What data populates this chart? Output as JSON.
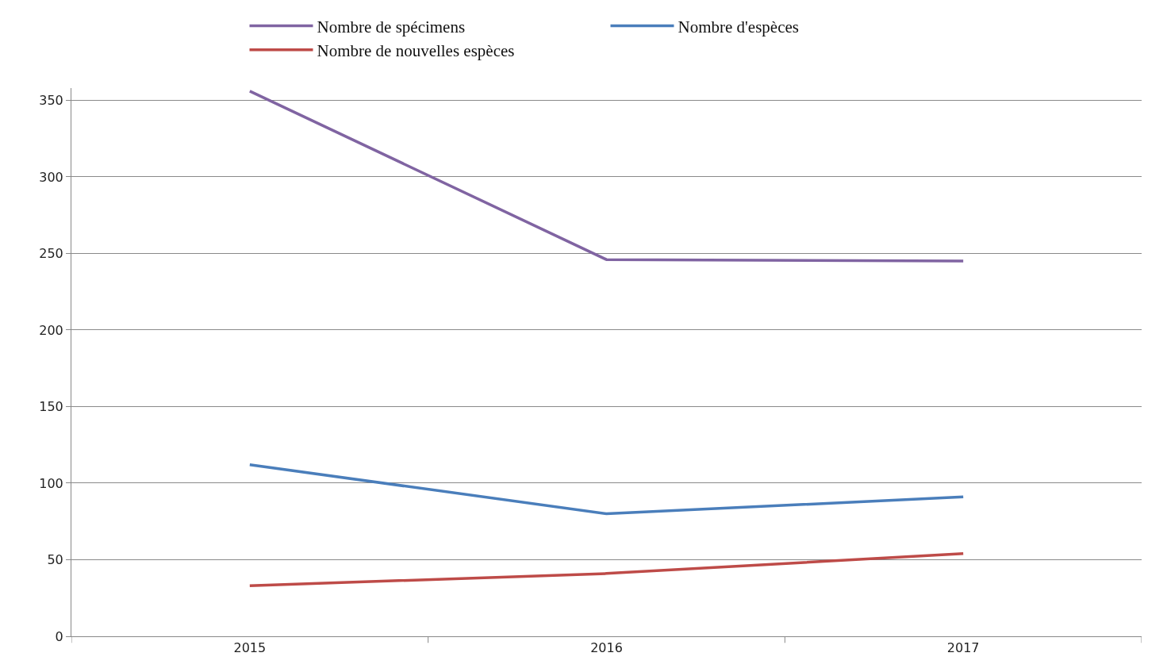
{
  "chart_data": {
    "type": "line",
    "categories": [
      "2015",
      "2016",
      "2017"
    ],
    "series": [
      {
        "name": "Nombre de spécimens",
        "color": "#8064a2",
        "values": [
          356,
          246,
          245
        ]
      },
      {
        "name": "Nombre d'espèces",
        "color": "#4a7ebb",
        "values": [
          112,
          80,
          91
        ]
      },
      {
        "name": "Nombre de nouvelles espèces",
        "color": "#be4b48",
        "values": [
          33,
          41,
          54
        ]
      }
    ],
    "ylim": [
      0,
      358
    ],
    "yticks": [
      0,
      50,
      100,
      150,
      200,
      250,
      300,
      350
    ],
    "grid": "y",
    "legend": "top",
    "marker": "none",
    "line_style": "solid"
  }
}
